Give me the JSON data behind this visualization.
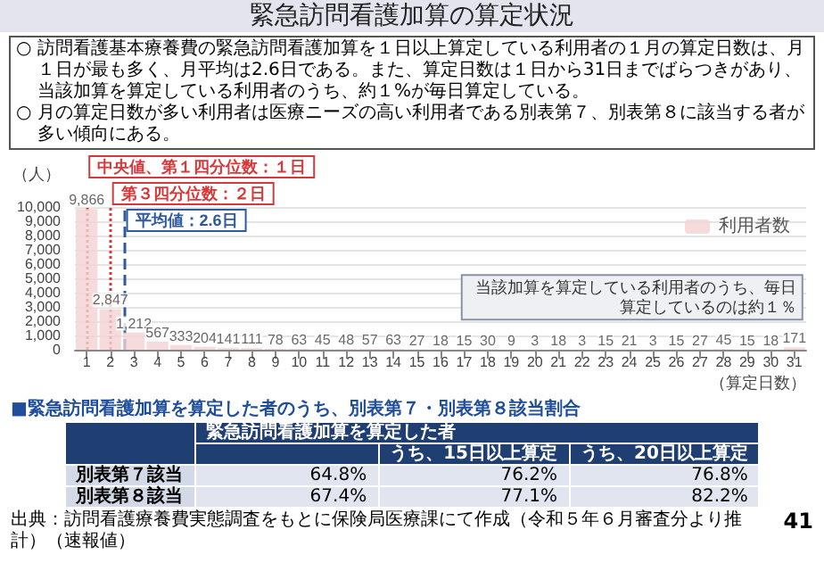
{
  "chart_data": [
    {
      "type": "bar",
      "title": "緊急訪問看護加算の算定状況",
      "annotations": [
        "○ 訪問看護基本療養費の緊急訪問看護加算を１日以上算定している利用者の１月の算定日数は、月１日が最も多く、月平均は2.6日である。また、算定日数は１日から31日までばらつきがあり、当該加算を算定している利用者のうち、約１%が毎日算定している。",
        "○ 月の算定日数が多い利用者は医療ニーズの高い利用者である別表第７、別表第８に該当する者が多い傾向にある。",
        {
          "text": "当該加算を算定している利用者のうち、毎日算定しているのは約１％",
          "x": 31,
          "y": 171
        }
      ],
      "x": [
        1,
        2,
        3,
        4,
        5,
        6,
        7,
        8,
        9,
        10,
        11,
        12,
        13,
        14,
        15,
        16,
        17,
        18,
        19,
        20,
        21,
        22,
        23,
        24,
        25,
        26,
        27,
        28,
        29,
        30,
        31
      ],
      "series": [
        {
          "name": "利用者数",
          "color": "#f2d2d2",
          "values": [
            9866,
            2847,
            1212,
            567,
            333,
            204,
            141,
            111,
            78,
            63,
            45,
            48,
            57,
            63,
            27,
            18,
            15,
            30,
            9,
            3,
            18,
            3,
            15,
            21,
            3,
            15,
            27,
            45,
            15,
            18,
            171
          ],
          "value_labels": [
            "9,866",
            "2,847",
            "1,212",
            "567",
            "333",
            "204",
            "141",
            "111",
            "78",
            "63",
            "45",
            "48",
            "57",
            "63",
            "27",
            "18",
            "15",
            "30",
            "9",
            "3",
            "18",
            "3",
            "15",
            "21",
            "3",
            "15",
            "27",
            "45",
            "15",
            "18",
            "171"
          ]
        }
      ],
      "xlim": [
        0.5,
        31.5
      ],
      "xticks": [
        1,
        2,
        3,
        4,
        5,
        6,
        7,
        8,
        9,
        10,
        11,
        12,
        13,
        14,
        15,
        16,
        17,
        18,
        19,
        20,
        21,
        22,
        23,
        24,
        25,
        26,
        27,
        28,
        29,
        30,
        31
      ],
      "ylim": [
        0,
        10000
      ],
      "yticks": [
        0,
        {
          "value": 1000,
          "label": "1,000"
        },
        {
          "value": 2000,
          "label": "2,000"
        },
        {
          "value": 3000,
          "label": "3,000"
        },
        {
          "value": 4000,
          "label": "4,000"
        },
        {
          "value": 5000,
          "label": "5,000"
        },
        {
          "value": 6000,
          "label": "6,000"
        },
        {
          "value": 7000,
          "label": "7,000"
        },
        {
          "value": 8000,
          "label": "8,000"
        },
        {
          "value": 9000,
          "label": "9,000"
        },
        {
          "value": 10000,
          "label": "10,000"
        }
      ],
      "ylabel": "（人）",
      "xlabel": "（算定日数）",
      "ref_lines": [
        {
          "axis": "x",
          "value": 1,
          "label": "中央値、第１四分位数：１日",
          "color": "#d9383a",
          "line_style": "dotted"
        },
        {
          "axis": "x",
          "value": 2,
          "label": "第３四分位数：２日",
          "color": "#d9383a",
          "line_style": "dotted"
        },
        {
          "axis": "x",
          "value": 2.6,
          "label": "平均値：2.6日",
          "color": "#2f5a9e",
          "line_style": "dashed"
        }
      ],
      "grid": "y",
      "legend": "top right"
    },
    {
      "type": "other",
      "title": "■緊急訪問看護加算を算定した者のうち、別表第７・別表第８該当割合",
      "categories": [
        "緊急訪問看護加算を算定した者",
        "うち、15日以上算定",
        "うち、20日以上算定"
      ],
      "y_categories": [
        "別表第７該当",
        "別表第８該当"
      ],
      "cell_labels": [
        [
          "64.8%",
          "76.2%",
          "76.8%"
        ],
        [
          "67.4%",
          "77.1%",
          "82.2%"
        ]
      ],
      "annotations": [
        "出典：訪問看護療養費実態調査をもとに保険局医療課にて作成（令和５年６月審査分より推計）（速報値）",
        "41"
      ]
    }
  ]
}
